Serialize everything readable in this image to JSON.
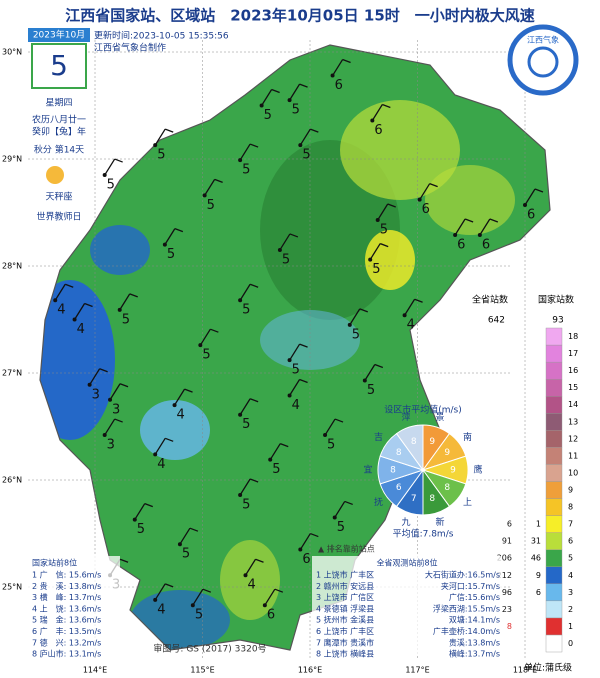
{
  "header": {
    "title": "江西省国家站、区域站　2023年10月05日 15时　一小时内极大风速",
    "updated": "更新时间:2023-10-05 15:35:56",
    "producer": "江西省气象台制作"
  },
  "calendar": {
    "month": "2023年10月",
    "day": "5",
    "weekday": "星期四",
    "lunar": "农历八月廿一",
    "year": "癸卯【兔】年",
    "solar_term": "秋分 第14天",
    "constellation": "天秤座",
    "festival": "世界教师日"
  },
  "logo": {
    "text": "江西气象"
  },
  "axes": {
    "lat": [
      {
        "value": 30,
        "label": "30°N"
      },
      {
        "value": 29,
        "label": "29°N"
      },
      {
        "value": 28,
        "label": "28°N"
      },
      {
        "value": 27,
        "label": "27°N"
      },
      {
        "value": 26,
        "label": "26°N"
      },
      {
        "value": 25,
        "label": "25°N"
      }
    ],
    "lon": [
      {
        "value": 114,
        "label": "114°E"
      },
      {
        "value": 115,
        "label": "115°E"
      },
      {
        "value": 116,
        "label": "116°E"
      },
      {
        "value": 117,
        "label": "117°E"
      },
      {
        "value": 118,
        "label": "118°E"
      }
    ]
  },
  "stations": [
    {
      "lon": 116.21,
      "lat": 29.78,
      "value": 6
    },
    {
      "lon": 115.81,
      "lat": 29.55,
      "value": 5
    },
    {
      "lon": 115.55,
      "lat": 29.5,
      "value": 5
    },
    {
      "lon": 116.58,
      "lat": 29.36,
      "value": 6
    },
    {
      "lon": 115.91,
      "lat": 29.13,
      "value": 5
    },
    {
      "lon": 114.56,
      "lat": 29.13,
      "value": 5
    },
    {
      "lon": 115.35,
      "lat": 28.99,
      "value": 5
    },
    {
      "lon": 114.09,
      "lat": 28.85,
      "value": 5
    },
    {
      "lon": 115.02,
      "lat": 28.66,
      "value": 5
    },
    {
      "lon": 117.02,
      "lat": 28.62,
      "value": 6
    },
    {
      "lon": 118.0,
      "lat": 28.57,
      "value": 6
    },
    {
      "lon": 117.35,
      "lat": 28.29,
      "value": 6
    },
    {
      "lon": 117.58,
      "lat": 28.29,
      "value": 6
    },
    {
      "lon": 116.63,
      "lat": 28.43,
      "value": 5
    },
    {
      "lon": 116.56,
      "lat": 28.06,
      "value": 5
    },
    {
      "lon": 115.72,
      "lat": 28.15,
      "value": 5
    },
    {
      "lon": 114.65,
      "lat": 28.2,
      "value": 5
    },
    {
      "lon": 113.63,
      "lat": 27.68,
      "value": 4
    },
    {
      "lon": 113.81,
      "lat": 27.5,
      "value": 4
    },
    {
      "lon": 114.23,
      "lat": 27.59,
      "value": 5
    },
    {
      "lon": 115.35,
      "lat": 27.68,
      "value": 5
    },
    {
      "lon": 116.37,
      "lat": 27.45,
      "value": 5
    },
    {
      "lon": 116.88,
      "lat": 27.54,
      "value": 4
    },
    {
      "lon": 114.98,
      "lat": 27.26,
      "value": 5
    },
    {
      "lon": 115.81,
      "lat": 27.12,
      "value": 5
    },
    {
      "lon": 116.51,
      "lat": 26.93,
      "value": 5
    },
    {
      "lon": 114.14,
      "lat": 26.75,
      "value": 3
    },
    {
      "lon": 113.95,
      "lat": 26.89,
      "value": 3
    },
    {
      "lon": 114.74,
      "lat": 26.7,
      "value": 4
    },
    {
      "lon": 115.35,
      "lat": 26.61,
      "value": 5
    },
    {
      "lon": 114.09,
      "lat": 26.42,
      "value": 3
    },
    {
      "lon": 114.56,
      "lat": 26.24,
      "value": 4
    },
    {
      "lon": 116.14,
      "lat": 26.42,
      "value": 5
    },
    {
      "lon": 115.63,
      "lat": 26.19,
      "value": 5
    },
    {
      "lon": 114.37,
      "lat": 25.63,
      "value": 5
    },
    {
      "lon": 114.79,
      "lat": 25.4,
      "value": 5
    },
    {
      "lon": 115.35,
      "lat": 25.86,
      "value": 5
    },
    {
      "lon": 115.91,
      "lat": 25.35,
      "value": 6
    },
    {
      "lon": 115.4,
      "lat": 25.11,
      "value": 4
    },
    {
      "lon": 114.56,
      "lat": 24.88,
      "value": 4
    },
    {
      "lon": 114.14,
      "lat": 25.11,
      "value": 3
    },
    {
      "lon": 114.91,
      "lat": 24.83,
      "value": 5
    },
    {
      "lon": 115.58,
      "lat": 24.83,
      "value": 6
    },
    {
      "lon": 116.23,
      "lat": 25.65,
      "value": 5
    },
    {
      "lon": 115.81,
      "lat": 26.79,
      "value": 4
    }
  ],
  "pie": {
    "title": "设区市平均值(m/s)",
    "average": "平均值:7.8m/s",
    "slices": [
      {
        "name": "景",
        "value": 9,
        "color": "#f29a38"
      },
      {
        "name": "南",
        "value": 9,
        "color": "#f5b93a"
      },
      {
        "name": "鹰",
        "value": 9,
        "color": "#f4d637"
      },
      {
        "name": "上",
        "value": 8,
        "color": "#6cc04a"
      },
      {
        "name": "新",
        "value": 8,
        "color": "#3a9a3a"
      },
      {
        "name": "九",
        "value": 7,
        "color": "#2f6fc4"
      },
      {
        "name": "抚",
        "value": 6,
        "color": "#4a8ad8"
      },
      {
        "name": "宜",
        "value": 8,
        "color": "#7fb3ea"
      },
      {
        "name": "吉",
        "value": 8,
        "color": "#a9cdf0"
      },
      {
        "name": "萍",
        "value": 8,
        "color": "#c7d9ee"
      }
    ]
  },
  "legend": {
    "province_header": "全省站数",
    "national_header": "国家站数",
    "province_total": 642,
    "national_total": 93,
    "unit": "单位:蒲氏级",
    "levels": [
      0,
      1,
      2,
      3,
      4,
      5,
      6,
      7,
      8,
      9,
      10,
      11,
      12,
      13,
      14,
      15,
      16,
      17,
      18
    ],
    "colors": [
      "#ffffff",
      "#e03030",
      "#bfe6f7",
      "#68b8ec",
      "#2468c8",
      "#3aa64a",
      "#b9de3a",
      "#f6ee28",
      "#f5c426",
      "#ef9f3a",
      "#d9a38f",
      "#c48276",
      "#a5646a",
      "#8e5b74",
      "#b25387",
      "#c764a8",
      "#d672c6",
      "#e283de",
      "#f0a8f0"
    ],
    "counts": [
      {
        "level": 7,
        "province": 6,
        "national": 1
      },
      {
        "level": 6,
        "province": 91,
        "national": 31
      },
      {
        "level": 5,
        "province": 206,
        "national": 46
      },
      {
        "level": 4,
        "province": 212,
        "national": 9
      },
      {
        "level": 3,
        "province": 96,
        "national": 6
      },
      {
        "level": 2,
        "province": 23
      },
      {
        "level": 1,
        "province": 8
      }
    ]
  },
  "ranking_note": "▲ 排名靠前站点",
  "national_top": {
    "title": "国家站前8位",
    "rows": [
      "1 广　信: 15.6m/s",
      "2 贵　溪: 13.8m/s",
      "3 横　峰: 13.7m/s",
      "4 上　饶: 13.6m/s",
      "5 瑞　金: 13.6m/s",
      "6 广　丰: 13.5m/s",
      "7 德　兴: 13.2m/s",
      "8 庐山市: 13.1m/s"
    ]
  },
  "province_top": {
    "title": "全省观测站前8位",
    "rows": [
      [
        "1 上饶市 广丰区",
        "大石街道办:16.5m/s"
      ],
      [
        "2 赣州市 安远县",
        "夹河口:15.7m/s"
      ],
      [
        "3 上饶市 广信区",
        "广信:15.6m/s"
      ],
      [
        "4 景德镇 浮梁县",
        "浮梁西湖:15.5m/s"
      ],
      [
        "5 抚州市 金溪县",
        "双塘:14.1m/s"
      ],
      [
        "6 上饶市 广丰区",
        "广丰壶桥:14.0m/s"
      ],
      [
        "7 鹰潭市 贵溪市",
        "贵溪:13.8m/s"
      ],
      [
        "8 上饶市 横峰县",
        "横峰:13.7m/s"
      ]
    ]
  },
  "review_no": "审图号: GS (2017) 3320号"
}
